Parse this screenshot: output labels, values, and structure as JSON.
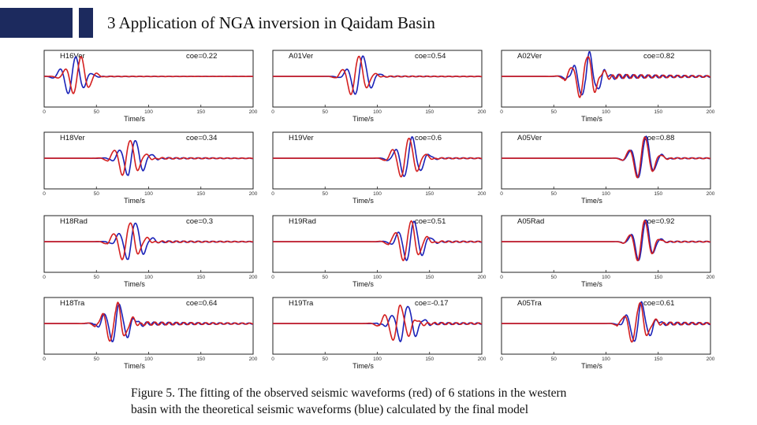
{
  "slide": {
    "title": "3  Application of NGA inversion in Qaidam Basin"
  },
  "caption": {
    "line1": "Figure 5. The fitting of the observed seismic waveforms (red) of 6 stations in the western",
    "line2": "basin with the theoretical seismic waveforms (blue) calculated by the final  model"
  },
  "colors": {
    "observed": "#d42020",
    "synthetic": "#1a22b8",
    "frame": "#222222",
    "accent": "#1c2a5e"
  },
  "chart_data": [
    {
      "type": "line",
      "title": "H16Ver",
      "coe": "coe=0.22",
      "xlabel": "Time/s",
      "xticks": [
        "0",
        "50",
        "100",
        "150",
        "200"
      ],
      "xlim": [
        0,
        200
      ],
      "series": [
        {
          "name": "observed",
          "color": "red"
        },
        {
          "name": "synthetic",
          "color": "blue"
        }
      ]
    },
    {
      "type": "line",
      "title": "A01Ver",
      "coe": "coe=0.54",
      "xlabel": "Time/s",
      "xticks": [
        "0",
        "50",
        "100",
        "150",
        "200"
      ],
      "xlim": [
        0,
        200
      ],
      "series": [
        {
          "name": "observed",
          "color": "red"
        },
        {
          "name": "synthetic",
          "color": "blue"
        }
      ]
    },
    {
      "type": "line",
      "title": "A02Ver",
      "coe": "coe=0.82",
      "xlabel": "Time/s",
      "xticks": [
        "0",
        "50",
        "100",
        "150",
        "200"
      ],
      "xlim": [
        0,
        200
      ],
      "series": [
        {
          "name": "observed",
          "color": "red"
        },
        {
          "name": "synthetic",
          "color": "blue"
        }
      ]
    },
    {
      "type": "line",
      "title": "H18Ver",
      "coe": "coe=0.34",
      "xlabel": "Time/s",
      "xticks": [
        "0",
        "50",
        "100",
        "150",
        "200"
      ],
      "xlim": [
        0,
        200
      ],
      "series": [
        {
          "name": "observed",
          "color": "red"
        },
        {
          "name": "synthetic",
          "color": "blue"
        }
      ]
    },
    {
      "type": "line",
      "title": "H19Ver",
      "coe": "coe=0.6",
      "xlabel": "Time/s",
      "xticks": [
        "0",
        "50",
        "100",
        "150",
        "200"
      ],
      "xlim": [
        0,
        200
      ],
      "series": [
        {
          "name": "observed",
          "color": "red"
        },
        {
          "name": "synthetic",
          "color": "blue"
        }
      ]
    },
    {
      "type": "line",
      "title": "A05Ver",
      "coe": "coe=0.88",
      "xlabel": "Time/s",
      "xticks": [
        "0",
        "50",
        "100",
        "150",
        "200"
      ],
      "xlim": [
        0,
        200
      ],
      "series": [
        {
          "name": "observed",
          "color": "red"
        },
        {
          "name": "synthetic",
          "color": "blue"
        }
      ]
    },
    {
      "type": "line",
      "title": "H18Rad",
      "coe": "coe=0.3",
      "xlabel": "Time/s",
      "xticks": [
        "0",
        "50",
        "100",
        "150",
        "200"
      ],
      "xlim": [
        0,
        200
      ],
      "series": [
        {
          "name": "observed",
          "color": "red"
        },
        {
          "name": "synthetic",
          "color": "blue"
        }
      ]
    },
    {
      "type": "line",
      "title": "H19Rad",
      "coe": "coe=0.51",
      "xlabel": "Time/s",
      "xticks": [
        "0",
        "50",
        "100",
        "150",
        "200"
      ],
      "xlim": [
        0,
        200
      ],
      "series": [
        {
          "name": "observed",
          "color": "red"
        },
        {
          "name": "synthetic",
          "color": "blue"
        }
      ]
    },
    {
      "type": "line",
      "title": "A05Rad",
      "coe": "coe=0.92",
      "xlabel": "Time/s",
      "xticks": [
        "0",
        "50",
        "100",
        "150",
        "200"
      ],
      "xlim": [
        0,
        200
      ],
      "series": [
        {
          "name": "observed",
          "color": "red"
        },
        {
          "name": "synthetic",
          "color": "blue"
        }
      ]
    },
    {
      "type": "line",
      "title": "H18Tra",
      "coe": "coe=0.64",
      "xlabel": "Time/s",
      "xticks": [
        "0",
        "50",
        "100",
        "150",
        "200"
      ],
      "xlim": [
        0,
        200
      ],
      "series": [
        {
          "name": "observed",
          "color": "red"
        },
        {
          "name": "synthetic",
          "color": "blue"
        }
      ]
    },
    {
      "type": "line",
      "title": "H19Tra",
      "coe": "coe=-0.17",
      "xlabel": "Time/s",
      "xticks": [
        "0",
        "50",
        "100",
        "150",
        "200"
      ],
      "xlim": [
        0,
        200
      ],
      "series": [
        {
          "name": "observed",
          "color": "red"
        },
        {
          "name": "synthetic",
          "color": "blue"
        }
      ]
    },
    {
      "type": "line",
      "title": "A05Tra",
      "coe": "coe=0.61",
      "xlabel": "Time/s",
      "xticks": [
        "0",
        "50",
        "100",
        "150",
        "200"
      ],
      "xlim": [
        0,
        200
      ],
      "series": [
        {
          "name": "observed",
          "color": "red"
        },
        {
          "name": "synthetic",
          "color": "blue"
        }
      ]
    }
  ]
}
